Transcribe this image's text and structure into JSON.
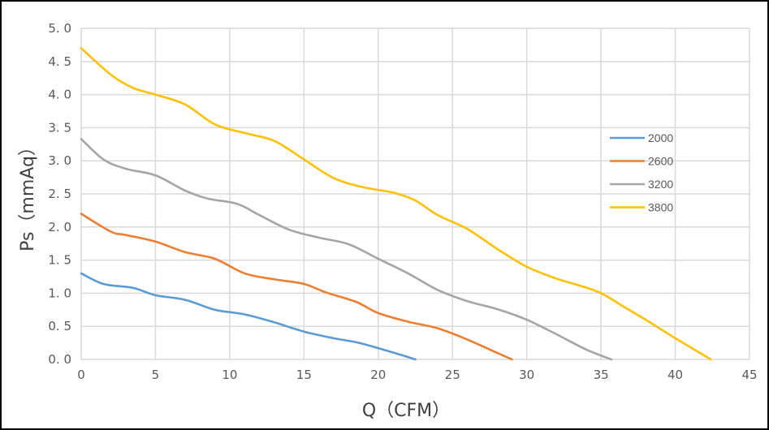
{
  "chart_data": {
    "type": "line",
    "xlabel": "Q（CFM）",
    "ylabel": "Ps（mmAq）",
    "xlim": [
      0,
      45
    ],
    "ylim": [
      0,
      5
    ],
    "x_ticks": [
      "0",
      "5",
      "10",
      "15",
      "20",
      "25",
      "30",
      "35",
      "40",
      "45"
    ],
    "y_ticks": [
      "0. 0",
      "0. 5",
      "1. 0",
      "1. 5",
      "2. 0",
      "2. 5",
      "3. 0",
      "3. 5",
      "4. 0",
      "4. 5",
      "5. 0"
    ],
    "grid": true,
    "legend_position": "right",
    "series": [
      {
        "name": "2000",
        "color": "#5B9BD5",
        "x": [
          0,
          1.5,
          3.5,
          5,
          7,
          9,
          11,
          13,
          15,
          17,
          18.5,
          20,
          21.5,
          22.5
        ],
        "y": [
          1.3,
          1.14,
          1.08,
          0.97,
          0.9,
          0.75,
          0.68,
          0.56,
          0.42,
          0.32,
          0.26,
          0.17,
          0.07,
          0.0
        ]
      },
      {
        "name": "2600",
        "color": "#ED7D31",
        "x": [
          0,
          2,
          3,
          5,
          7,
          9,
          11,
          13,
          15,
          16.5,
          18.5,
          20,
          22,
          24,
          26,
          28,
          29
        ],
        "y": [
          2.2,
          1.93,
          1.88,
          1.78,
          1.62,
          1.52,
          1.3,
          1.21,
          1.14,
          1.01,
          0.87,
          0.7,
          0.57,
          0.47,
          0.3,
          0.1,
          0.0
        ]
      },
      {
        "name": "3200",
        "color": "#A5A5A5",
        "x": [
          0,
          1.5,
          3,
          5,
          7,
          8.5,
          10.5,
          12,
          14,
          16,
          18,
          20,
          22,
          24,
          26,
          28,
          30,
          32,
          34,
          35.7
        ],
        "y": [
          3.33,
          3.02,
          2.88,
          2.78,
          2.55,
          2.43,
          2.35,
          2.18,
          1.96,
          1.84,
          1.74,
          1.52,
          1.3,
          1.05,
          0.88,
          0.76,
          0.6,
          0.38,
          0.15,
          0.0
        ]
      },
      {
        "name": "3800",
        "color": "#FFC000",
        "x": [
          0,
          2,
          3.5,
          5,
          7,
          9,
          11,
          13,
          15,
          17,
          19,
          21,
          22.5,
          24,
          26,
          28,
          30,
          32,
          33.5,
          35,
          36.5,
          38,
          40,
          42.4
        ],
        "y": [
          4.7,
          4.3,
          4.1,
          4.0,
          3.85,
          3.55,
          3.42,
          3.3,
          3.02,
          2.74,
          2.6,
          2.52,
          2.4,
          2.18,
          1.97,
          1.67,
          1.4,
          1.22,
          1.12,
          1.0,
          0.8,
          0.6,
          0.32,
          0.0
        ]
      }
    ]
  }
}
